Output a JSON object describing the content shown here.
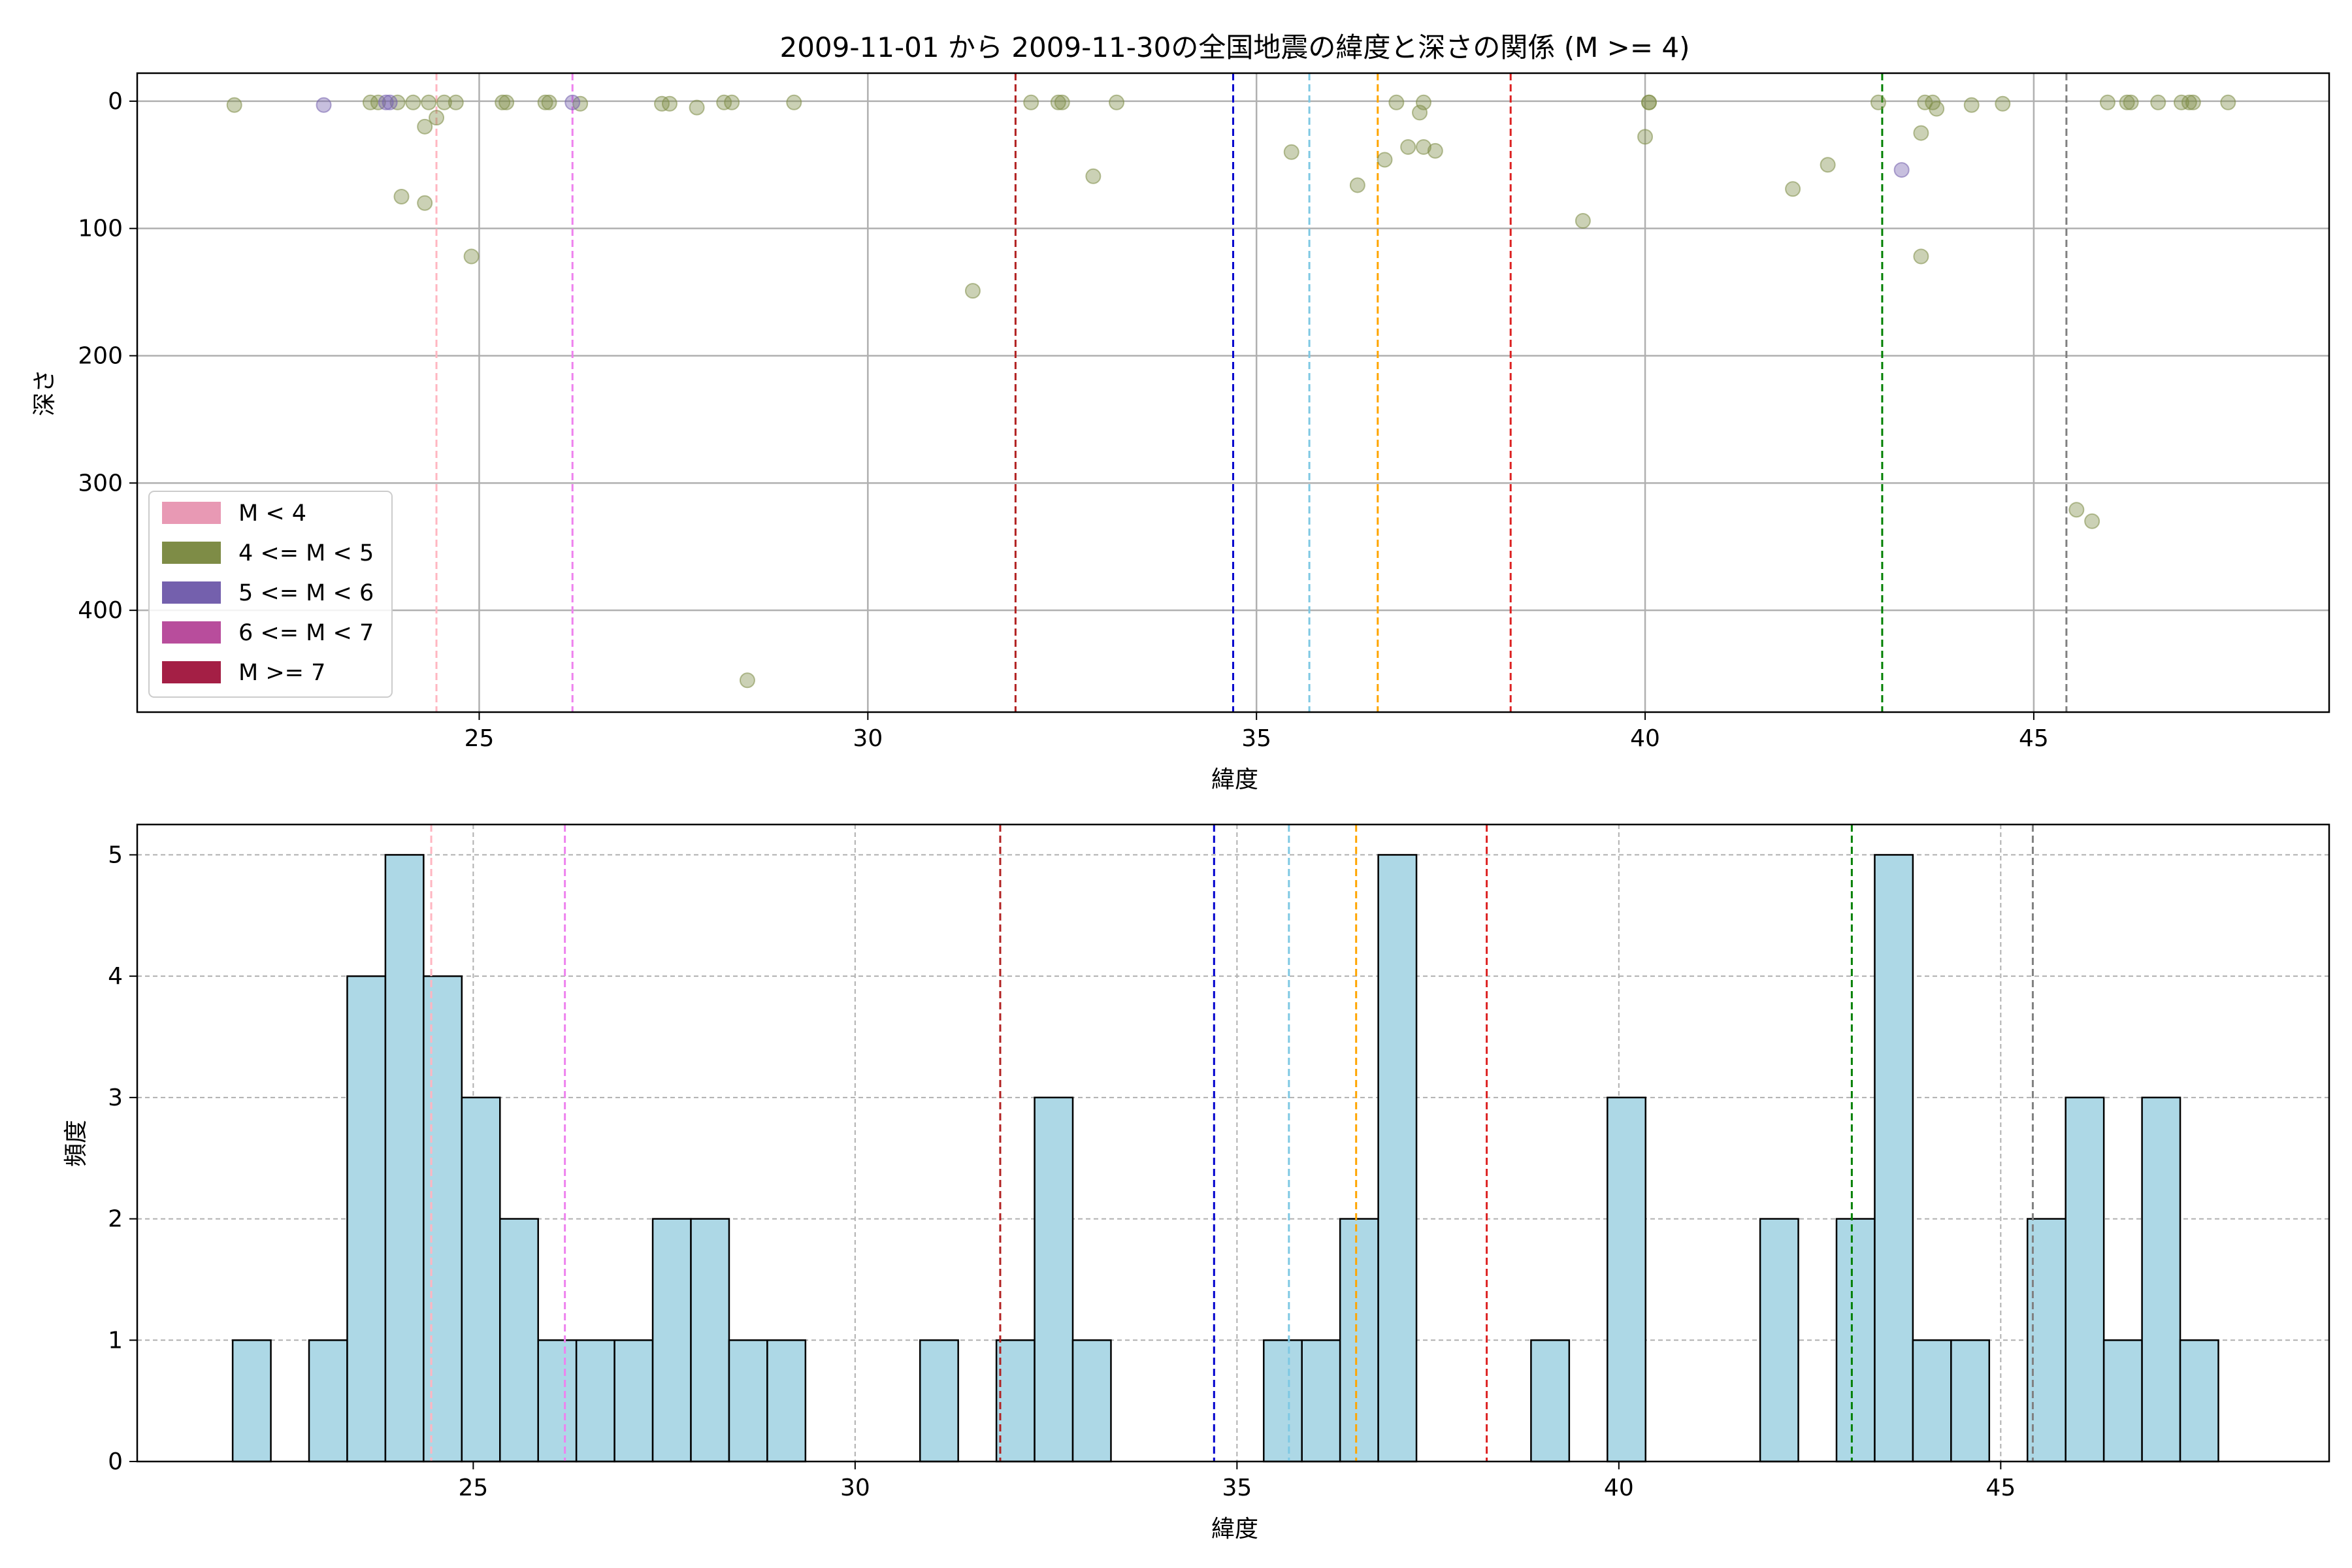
{
  "chart_data": [
    {
      "type": "scatter",
      "title": "2009-11-01 から 2009-11-30の全国地震の緯度と深さの関係 (M >= 4)",
      "xlabel": "緯度",
      "ylabel": "深さ",
      "xlim": [
        20.6,
        48.8
      ],
      "ylim": [
        480,
        -22
      ],
      "y_inverted": true,
      "xticks": [
        25,
        30,
        35,
        40,
        45
      ],
      "yticks": [
        0,
        100,
        200,
        300,
        400
      ],
      "grid": true,
      "legend_position": "lower-left",
      "legend": [
        {
          "label": "M < 4",
          "color": "#e899b4"
        },
        {
          "label": "4 <= M < 5",
          "color": "#7e8c46"
        },
        {
          "label": "5 <= M < 6",
          "color": "#7460ad"
        },
        {
          "label": "6 <= M < 7",
          "color": "#b84d9c"
        },
        {
          "label": "M >= 7",
          "color": "#a41f45"
        }
      ],
      "reference_lines": [
        {
          "x": 24.45,
          "color": "#ffb6c1"
        },
        {
          "x": 26.2,
          "color": "#ee82ee"
        },
        {
          "x": 31.9,
          "color": "#b22222"
        },
        {
          "x": 34.7,
          "color": "#0000cd"
        },
        {
          "x": 35.68,
          "color": "#7ec8e3"
        },
        {
          "x": 36.56,
          "color": "#ffa500"
        },
        {
          "x": 38.27,
          "color": "#dd2222"
        },
        {
          "x": 43.05,
          "color": "#008000"
        },
        {
          "x": 45.42,
          "color": "#808080"
        }
      ],
      "series": [
        {
          "color": "#7e8c46",
          "points": [
            [
              21.85,
              3
            ],
            [
              23.6,
              1
            ],
            [
              23.7,
              1
            ],
            [
              23.95,
              1
            ],
            [
              24.15,
              1
            ],
            [
              24.35,
              1
            ],
            [
              24.3,
              20
            ],
            [
              24.45,
              13
            ],
            [
              24.55,
              1
            ],
            [
              24.7,
              1
            ],
            [
              24.0,
              75
            ],
            [
              24.3,
              80
            ],
            [
              24.9,
              122
            ],
            [
              25.3,
              1
            ],
            [
              25.35,
              1
            ],
            [
              25.85,
              1
            ],
            [
              25.9,
              1
            ],
            [
              26.3,
              2
            ],
            [
              27.35,
              2
            ],
            [
              27.45,
              2
            ],
            [
              27.8,
              5
            ],
            [
              28.15,
              1
            ],
            [
              28.25,
              1
            ],
            [
              29.05,
              1
            ],
            [
              28.45,
              455
            ],
            [
              31.35,
              149
            ],
            [
              32.1,
              1
            ],
            [
              32.45,
              1
            ],
            [
              32.5,
              1
            ],
            [
              33.2,
              1
            ],
            [
              32.9,
              59
            ],
            [
              35.45,
              40
            ],
            [
              36.3,
              66
            ],
            [
              36.65,
              46
            ],
            [
              36.8,
              1
            ],
            [
              36.95,
              36
            ],
            [
              37.1,
              9
            ],
            [
              37.15,
              36
            ],
            [
              37.3,
              39
            ],
            [
              37.15,
              1
            ],
            [
              39.2,
              94
            ],
            [
              40.0,
              28
            ],
            [
              40.05,
              1
            ],
            [
              40.05,
              1
            ],
            [
              41.9,
              69
            ],
            [
              42.35,
              50
            ],
            [
              43.0,
              1
            ],
            [
              43.6,
              1
            ],
            [
              43.55,
              25
            ],
            [
              43.7,
              1
            ],
            [
              43.75,
              6
            ],
            [
              43.55,
              122
            ],
            [
              44.2,
              3
            ],
            [
              44.6,
              2
            ],
            [
              45.55,
              321
            ],
            [
              45.75,
              330
            ],
            [
              45.95,
              1
            ],
            [
              46.2,
              1
            ],
            [
              46.25,
              1
            ],
            [
              46.6,
              1
            ],
            [
              46.9,
              1
            ],
            [
              47.0,
              1
            ],
            [
              47.05,
              1
            ],
            [
              47.5,
              1
            ]
          ]
        },
        {
          "color": "#7460ad",
          "points": [
            [
              23.0,
              3
            ],
            [
              23.8,
              1
            ],
            [
              23.85,
              1
            ],
            [
              26.2,
              1
            ],
            [
              43.3,
              54
            ]
          ]
        }
      ]
    },
    {
      "type": "bar",
      "xlabel": "緯度",
      "ylabel": "頻度",
      "xlim": [
        20.6,
        49.3
      ],
      "ylim": [
        0,
        5.25
      ],
      "xticks": [
        25,
        30,
        35,
        40,
        45
      ],
      "yticks": [
        0,
        1,
        2,
        3,
        4,
        5
      ],
      "grid": true,
      "bar_color": "#add8e6",
      "bin_width": 0.5,
      "bins": [
        [
          21.85,
          1
        ],
        [
          22.85,
          1
        ],
        [
          23.35,
          4
        ],
        [
          23.85,
          5
        ],
        [
          24.35,
          4
        ],
        [
          24.85,
          3
        ],
        [
          25.35,
          2
        ],
        [
          25.85,
          1
        ],
        [
          26.35,
          1
        ],
        [
          26.85,
          1
        ],
        [
          27.35,
          2
        ],
        [
          27.85,
          2
        ],
        [
          28.35,
          1
        ],
        [
          28.85,
          1
        ],
        [
          30.85,
          1
        ],
        [
          31.85,
          1
        ],
        [
          32.35,
          3
        ],
        [
          32.85,
          1
        ],
        [
          35.35,
          1
        ],
        [
          35.85,
          1
        ],
        [
          36.35,
          2
        ],
        [
          36.85,
          5
        ],
        [
          38.85,
          1
        ],
        [
          39.85,
          3
        ],
        [
          41.85,
          2
        ],
        [
          42.85,
          2
        ],
        [
          43.35,
          5
        ],
        [
          43.85,
          1
        ],
        [
          44.35,
          1
        ],
        [
          45.35,
          2
        ],
        [
          45.85,
          3
        ],
        [
          46.35,
          1
        ],
        [
          46.85,
          3
        ],
        [
          47.35,
          1
        ]
      ],
      "reference_lines": [
        {
          "x": 24.45,
          "color": "#ffb6c1"
        },
        {
          "x": 26.2,
          "color": "#ee82ee"
        },
        {
          "x": 31.9,
          "color": "#b22222"
        },
        {
          "x": 34.7,
          "color": "#0000cd"
        },
        {
          "x": 35.68,
          "color": "#7ec8e3"
        },
        {
          "x": 36.56,
          "color": "#ffa500"
        },
        {
          "x": 38.27,
          "color": "#dd2222"
        },
        {
          "x": 43.05,
          "color": "#008000"
        },
        {
          "x": 45.42,
          "color": "#808080"
        }
      ]
    }
  ]
}
